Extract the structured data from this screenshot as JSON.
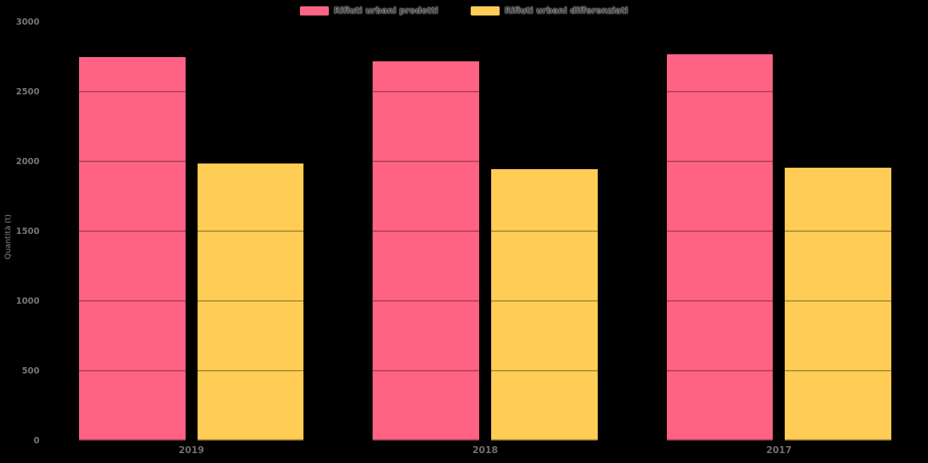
{
  "chart_data": {
    "type": "bar",
    "title": "",
    "categories": [
      "2019",
      "2018",
      "2017"
    ],
    "series": [
      {
        "name": "Rifiuti urbani prodotti",
        "color": "#FF6384",
        "values": [
          2750,
          2715,
          2770
        ]
      },
      {
        "name": "Rifiuti urbani differenziati",
        "color": "#FFCD56",
        "values": [
          1985,
          1945,
          1955
        ]
      }
    ],
    "xlabel": "",
    "ylabel": "Quantità (t)",
    "ylim": [
      0,
      3000
    ],
    "y_ticks": [
      0,
      500,
      1000,
      1500,
      2000,
      2500,
      3000
    ],
    "grid": true,
    "legend_position": "top",
    "background": "#000000"
  },
  "colors": {
    "background": "#000000",
    "series_prodotti": "#FF6384",
    "series_differenziati": "#FFCD56",
    "tick_label": "#757575",
    "x_label": "#6e6e6e",
    "axis_title": "#8a8a8a",
    "legend_text": "#3f3f3f",
    "gridline_overlay": "rgba(0,0,0,0.30)"
  }
}
